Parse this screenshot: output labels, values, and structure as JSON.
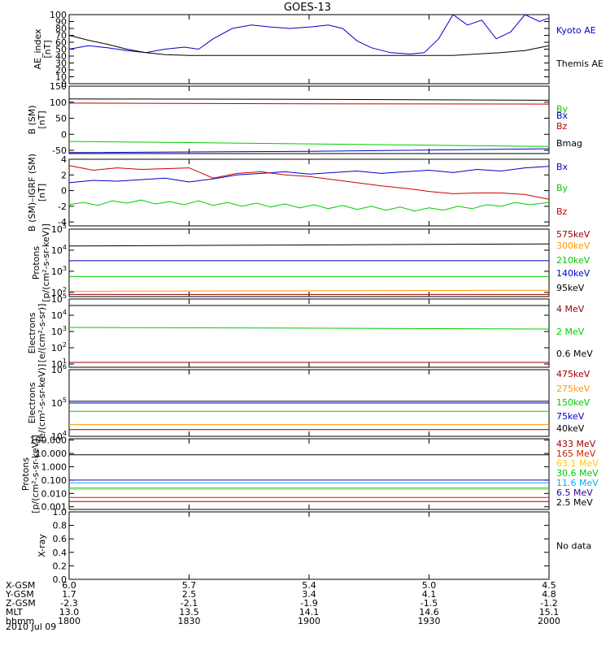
{
  "title": "GOES-13",
  "date_label": "2010 Jul 09",
  "chart_data": [
    {
      "id": "ae",
      "type": "line",
      "ylabel": [
        "AE_index",
        "[nT]"
      ],
      "ylim": [
        0,
        100
      ],
      "yscale": "linear",
      "yticks": [
        "0",
        "10",
        "20",
        "30",
        "40",
        "50",
        "60",
        "70",
        "80",
        "90",
        "100"
      ],
      "series": [
        {
          "name": "Kyoto AE",
          "color": "#0000cc",
          "points": [
            [
              0,
              50
            ],
            [
              4,
              55
            ],
            [
              8,
              52
            ],
            [
              12,
              48
            ],
            [
              16,
              45
            ],
            [
              20,
              50
            ],
            [
              24,
              53
            ],
            [
              27,
              50
            ],
            [
              30,
              65
            ],
            [
              34,
              80
            ],
            [
              38,
              85
            ],
            [
              42,
              82
            ],
            [
              46,
              80
            ],
            [
              50,
              82
            ],
            [
              54,
              85
            ],
            [
              57,
              80
            ],
            [
              60,
              62
            ],
            [
              63,
              52
            ],
            [
              67,
              45
            ],
            [
              71,
              43
            ],
            [
              74,
              45
            ],
            [
              77,
              65
            ],
            [
              80,
              100
            ],
            [
              83,
              85
            ],
            [
              86,
              92
            ],
            [
              89,
              65
            ],
            [
              92,
              75
            ],
            [
              95,
              100
            ],
            [
              98,
              90
            ],
            [
              100,
              95
            ]
          ]
        },
        {
          "name": "Themis AE",
          "color": "#000000",
          "points": [
            [
              0,
              70
            ],
            [
              4,
              63
            ],
            [
              8,
              57
            ],
            [
              12,
              50
            ],
            [
              16,
              45
            ],
            [
              20,
              42
            ],
            [
              25,
              41
            ],
            [
              30,
              41
            ],
            [
              40,
              41
            ],
            [
              50,
              41
            ],
            [
              60,
              41
            ],
            [
              70,
              41
            ],
            [
              80,
              41
            ],
            [
              85,
              43
            ],
            [
              90,
              45
            ],
            [
              95,
              48
            ],
            [
              100,
              55
            ]
          ]
        }
      ]
    },
    {
      "id": "bsm",
      "type": "line",
      "ylabel": [
        "B (SM)",
        "[nT]"
      ],
      "ylim": [
        -60,
        150
      ],
      "yscale": "linear",
      "yticks": [
        "-50",
        "0",
        "50",
        "100",
        "150"
      ],
      "series": [
        {
          "name": "Bx",
          "color": "#0000cc",
          "points": [
            [
              0,
              -57
            ],
            [
              50,
              -53
            ],
            [
              100,
              -45
            ]
          ]
        },
        {
          "name": "By",
          "color": "#00cc00",
          "points": [
            [
              0,
              -22
            ],
            [
              50,
              -30
            ],
            [
              100,
              -38
            ]
          ]
        },
        {
          "name": "Bz",
          "color": "#cc0000",
          "points": [
            [
              0,
              97
            ],
            [
              50,
              95
            ],
            [
              100,
              94
            ]
          ]
        },
        {
          "name": "Bmag",
          "color": "#000000",
          "points": [
            [
              0,
              110
            ],
            [
              50,
              109
            ],
            [
              100,
              106
            ]
          ]
        }
      ]
    },
    {
      "id": "bdiff",
      "type": "line",
      "ylabel": [
        "B (SM)–IGRF (SM)",
        "[nT]"
      ],
      "ylim": [
        -4.5,
        4
      ],
      "yscale": "linear",
      "yticks": [
        "-4",
        "-2",
        "0",
        "2",
        "4"
      ],
      "series": [
        {
          "name": "Bx",
          "color": "#0000cc",
          "points": [
            [
              0,
              1.0
            ],
            [
              5,
              1.3
            ],
            [
              10,
              1.2
            ],
            [
              15,
              1.4
            ],
            [
              20,
              1.6
            ],
            [
              25,
              1.1
            ],
            [
              30,
              1.5
            ],
            [
              35,
              2.0
            ],
            [
              40,
              2.2
            ],
            [
              45,
              2.4
            ],
            [
              50,
              2.1
            ],
            [
              55,
              2.3
            ],
            [
              60,
              2.5
            ],
            [
              65,
              2.2
            ],
            [
              70,
              2.4
            ],
            [
              75,
              2.6
            ],
            [
              80,
              2.3
            ],
            [
              85,
              2.7
            ],
            [
              90,
              2.5
            ],
            [
              95,
              2.9
            ],
            [
              100,
              3.1
            ]
          ]
        },
        {
          "name": "By",
          "color": "#00cc00",
          "points": [
            [
              0,
              -1.8
            ],
            [
              3,
              -1.5
            ],
            [
              6,
              -1.9
            ],
            [
              9,
              -1.3
            ],
            [
              12,
              -1.6
            ],
            [
              15,
              -1.2
            ],
            [
              18,
              -1.7
            ],
            [
              21,
              -1.4
            ],
            [
              24,
              -1.8
            ],
            [
              27,
              -1.3
            ],
            [
              30,
              -1.9
            ],
            [
              33,
              -1.5
            ],
            [
              36,
              -2.0
            ],
            [
              39,
              -1.6
            ],
            [
              42,
              -2.1
            ],
            [
              45,
              -1.7
            ],
            [
              48,
              -2.2
            ],
            [
              51,
              -1.8
            ],
            [
              54,
              -2.3
            ],
            [
              57,
              -1.9
            ],
            [
              60,
              -2.4
            ],
            [
              63,
              -2.0
            ],
            [
              66,
              -2.5
            ],
            [
              69,
              -2.1
            ],
            [
              72,
              -2.6
            ],
            [
              75,
              -2.2
            ],
            [
              78,
              -2.5
            ],
            [
              81,
              -2.0
            ],
            [
              84,
              -2.3
            ],
            [
              87,
              -1.8
            ],
            [
              90,
              -2.0
            ],
            [
              93,
              -1.5
            ],
            [
              96,
              -1.8
            ],
            [
              100,
              -1.5
            ]
          ]
        },
        {
          "name": "Bz",
          "color": "#cc0000",
          "points": [
            [
              0,
              3.2
            ],
            [
              5,
              2.6
            ],
            [
              10,
              2.9
            ],
            [
              15,
              2.7
            ],
            [
              20,
              2.8
            ],
            [
              25,
              2.9
            ],
            [
              30,
              1.6
            ],
            [
              35,
              2.2
            ],
            [
              40,
              2.4
            ],
            [
              45,
              2.0
            ],
            [
              50,
              1.8
            ],
            [
              55,
              1.4
            ],
            [
              60,
              1.0
            ],
            [
              65,
              0.6
            ],
            [
              70,
              0.3
            ],
            [
              75,
              -0.1
            ],
            [
              80,
              -0.4
            ],
            [
              85,
              -0.3
            ],
            [
              90,
              -0.3
            ],
            [
              95,
              -0.5
            ],
            [
              100,
              -1.1
            ]
          ]
        }
      ]
    },
    {
      "id": "prot1",
      "type": "line",
      "ylabel": [
        "Protons",
        "[p/(cm²-s-sr-keV)]"
      ],
      "ylim_log": [
        1.8,
        5.0
      ],
      "yscale": "log",
      "yticks": [
        {
          "e": "2"
        },
        {
          "e": "3"
        },
        {
          "e": "4"
        },
        {
          "e": "5"
        }
      ],
      "series": [
        {
          "name": "575keV",
          "color": "#990000",
          "points": [
            [
              0,
              1.9
            ],
            [
              100,
              1.9
            ]
          ]
        },
        {
          "name": "300keV",
          "color": "#ff9900",
          "points": [
            [
              0,
              2.05
            ],
            [
              100,
              2.1
            ]
          ]
        },
        {
          "name": "210keV",
          "color": "#00cc00",
          "points": [
            [
              0,
              2.75
            ],
            [
              100,
              2.75
            ]
          ]
        },
        {
          "name": "140keV",
          "color": "#0000cc",
          "points": [
            [
              0,
              3.5
            ],
            [
              100,
              3.5
            ]
          ]
        },
        {
          "name": "95keV",
          "color": "#000000",
          "points": [
            [
              0,
              4.2
            ],
            [
              100,
              4.3
            ]
          ]
        }
      ]
    },
    {
      "id": "elec1",
      "type": "line",
      "ylabel": [
        "Electrons",
        "[e/(cm²-s-sr)]"
      ],
      "ylim_log": [
        0.8,
        5.0
      ],
      "yscale": "log",
      "yticks": [
        {
          "e": "1"
        },
        {
          "e": "2"
        },
        {
          "e": "3"
        },
        {
          "e": "4"
        },
        {
          "e": "5"
        }
      ],
      "series": [
        {
          "name": "4 MeV",
          "color": "#990000",
          "points": [
            [
              0,
              1.1
            ],
            [
              100,
              1.1
            ]
          ]
        },
        {
          "name": "2 MeV",
          "color": "#00cc00",
          "points": [
            [
              0,
              3.25
            ],
            [
              55,
              3.2
            ],
            [
              100,
              3.15
            ]
          ]
        },
        {
          "name": "0.6 MeV",
          "color": "#000000",
          "points": [
            [
              0,
              4.6
            ],
            [
              100,
              4.6
            ]
          ]
        }
      ]
    },
    {
      "id": "elec2",
      "type": "line",
      "ylabel": [
        "Electrons",
        "[e/(cm²-s-sr-keV)]"
      ],
      "ylim_log": [
        4.0,
        6.0
      ],
      "yscale": "log",
      "yticks": [
        {
          "e": "4"
        },
        {
          "e": "5"
        },
        {
          "e": "6"
        }
      ],
      "series": [
        {
          "name": "475keV",
          "color": "#990000",
          "points": [
            [
              0,
              4.2
            ],
            [
              100,
              4.2
            ]
          ]
        },
        {
          "name": "275keV",
          "color": "#ff9900",
          "points": [
            [
              0,
              4.35
            ],
            [
              100,
              4.35
            ]
          ]
        },
        {
          "name": "150keV",
          "color": "#00cc00",
          "points": [
            [
              0,
              4.75
            ],
            [
              100,
              4.75
            ]
          ]
        },
        {
          "name": "75keV",
          "color": "#0000cc",
          "points": [
            [
              0,
              5.0
            ],
            [
              100,
              5.0
            ]
          ]
        },
        {
          "name": "40keV",
          "color": "#000000",
          "points": [
            [
              0,
              5.05
            ],
            [
              100,
              5.05
            ]
          ]
        }
      ]
    },
    {
      "id": "prot2",
      "type": "line",
      "ylabel": [
        "Protons",
        "[p/(cm²-s-sr-keV)]"
      ],
      "ylim_log": [
        -3.2,
        2.1
      ],
      "yscale": "log",
      "yticks": [
        "0.001",
        "0.010",
        "0.100",
        "1.000",
        "10.000",
        "100.000"
      ],
      "series": [
        {
          "name": "433 MeV",
          "color": "#990000",
          "points": [
            [
              0,
              -2.6
            ],
            [
              100,
              -2.6
            ]
          ]
        },
        {
          "name": "165 MeV",
          "color": "#cc2200",
          "points": [
            [
              0,
              -2.3
            ],
            [
              100,
              -2.3
            ]
          ]
        },
        {
          "name": "63.1 MeV",
          "color": "#ffcc00",
          "points": [
            [
              0,
              -1.7
            ],
            [
              100,
              -1.7
            ]
          ]
        },
        {
          "name": "30.6 MeV",
          "color": "#00cc00",
          "points": [
            [
              0,
              -1.6
            ],
            [
              100,
              -1.6
            ]
          ]
        },
        {
          "name": "11.6 MeV",
          "color": "#00aaff",
          "points": [
            [
              0,
              -1.2
            ],
            [
              100,
              -1.2
            ]
          ]
        },
        {
          "name": "6.5 MeV",
          "color": "#330099",
          "points": [
            [
              0,
              -1.0
            ],
            [
              100,
              -1.0
            ]
          ]
        },
        {
          "name": "2.5 MeV",
          "color": "#000000",
          "points": [
            [
              0,
              0.9
            ],
            [
              100,
              0.9
            ]
          ]
        }
      ]
    },
    {
      "id": "xray",
      "type": "line",
      "ylabel": [
        "X-ray"
      ],
      "ylim": [
        0,
        1
      ],
      "yscale": "linear",
      "yticks": [
        "0.0",
        "0.2",
        "0.4",
        "0.6",
        "0.8",
        "1.0"
      ],
      "series": [],
      "annotation": "No data"
    }
  ],
  "ephemeris": {
    "labels": [
      "X-GSM",
      "Y-GSM",
      "Z-GSM",
      "MLT",
      "hhmm"
    ],
    "columns": [
      [
        "6.0",
        "1.7",
        "-2.3",
        "13.0",
        "1800"
      ],
      [
        "5.7",
        "2.5",
        "-2.1",
        "13.5",
        "1830"
      ],
      [
        "5.4",
        "3.4",
        "-1.9",
        "14.1",
        "1900"
      ],
      [
        "5.0",
        "4.1",
        "-1.5",
        "14.6",
        "1930"
      ],
      [
        "4.5",
        "4.8",
        "-1.2",
        "15.1",
        "2000"
      ]
    ]
  }
}
